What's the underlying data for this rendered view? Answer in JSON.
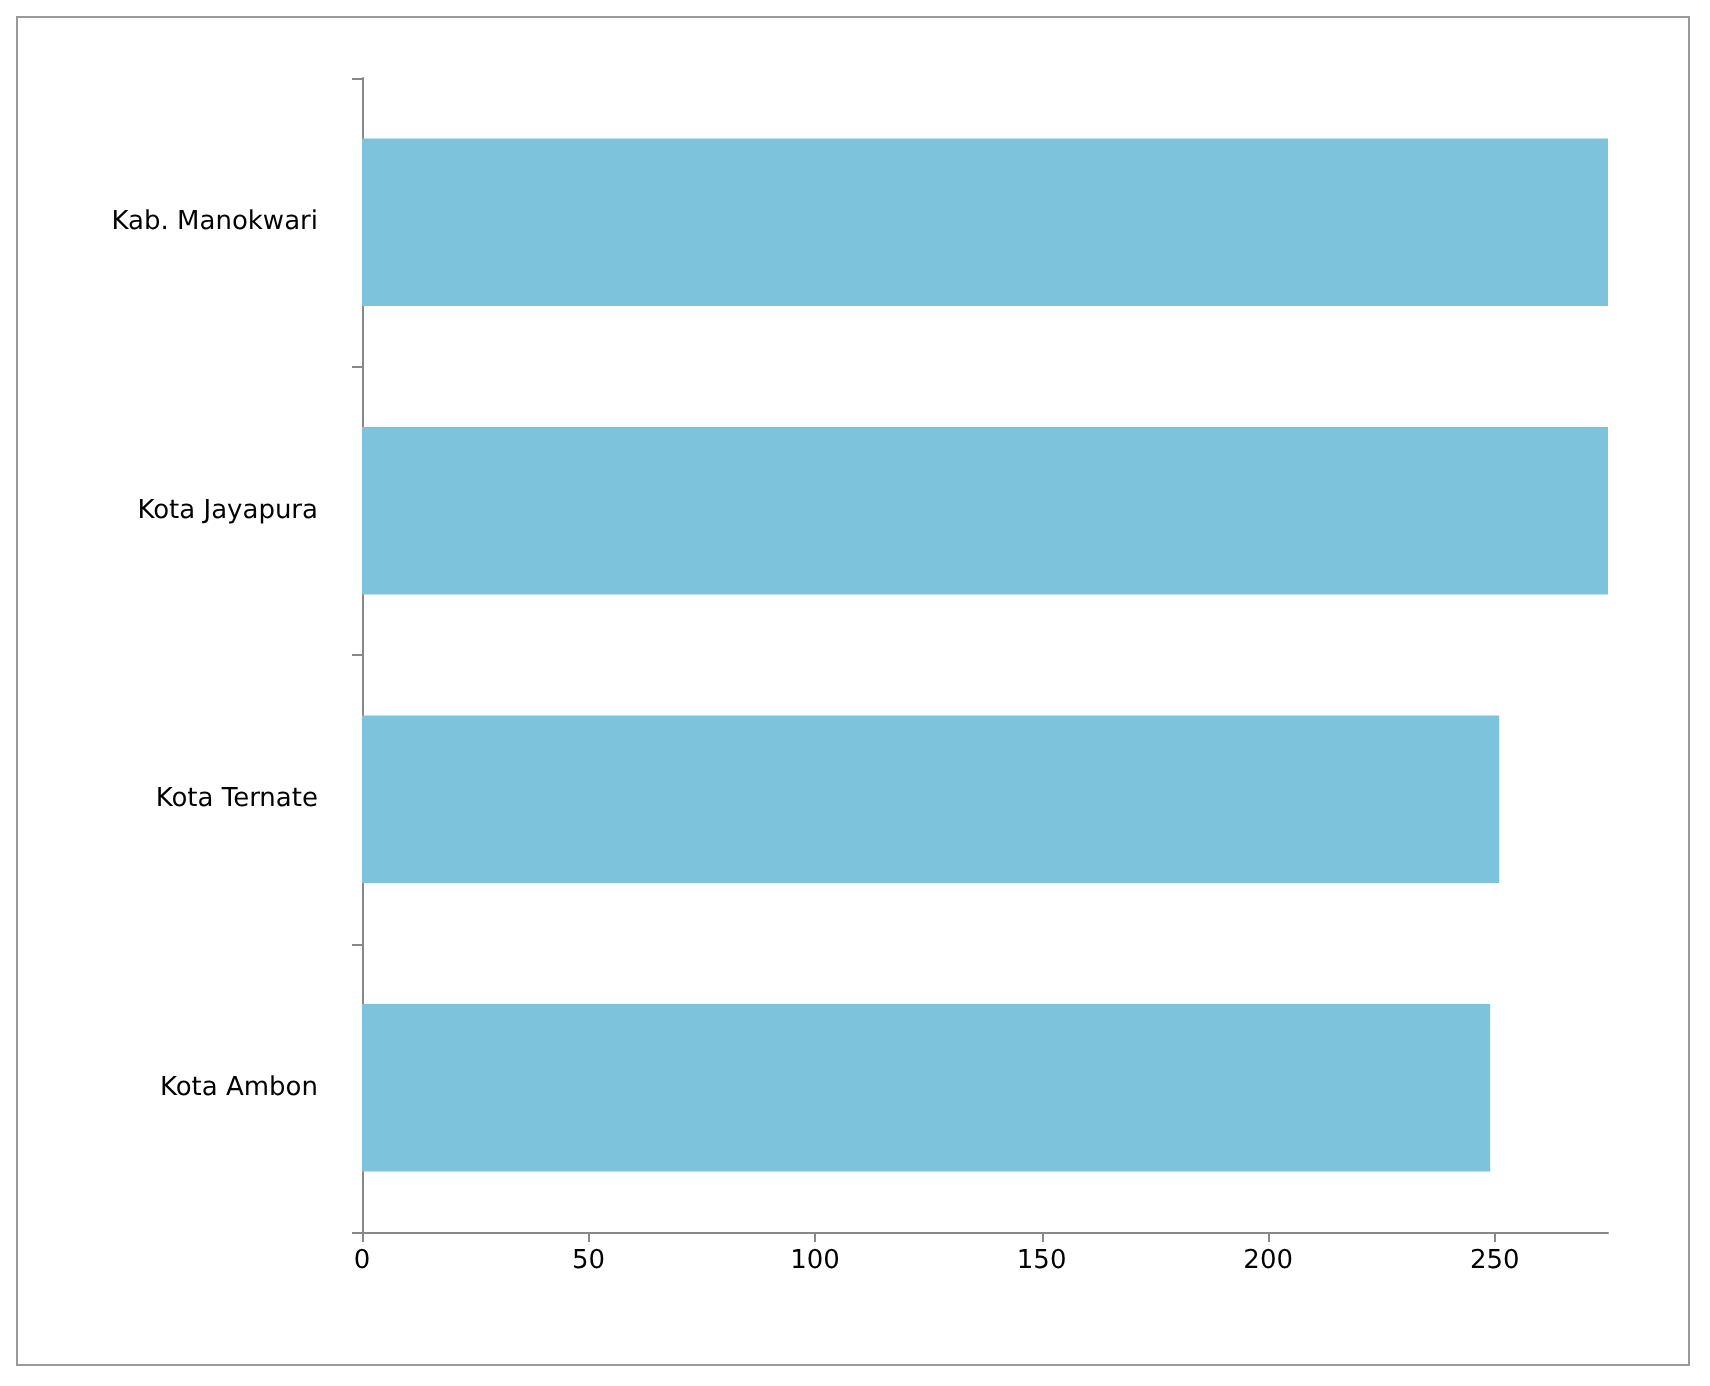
{
  "chart_data": {
    "type": "bar",
    "orientation": "horizontal",
    "categories": [
      "Kab. Manokwari",
      "Kota Jayapura",
      "Kota Ternate",
      "Kota Ambon"
    ],
    "values": [
      275,
      275,
      251,
      249
    ],
    "color": "#7ec3dc",
    "xlim": [
      0,
      275
    ],
    "xticks": [
      0,
      50,
      100,
      150,
      200,
      250
    ],
    "grid": false
  }
}
